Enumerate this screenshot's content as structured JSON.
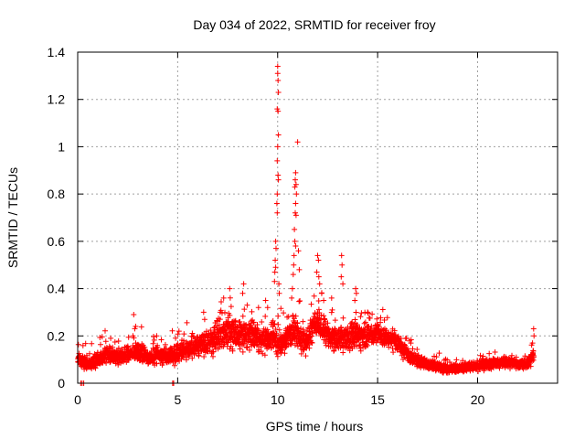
{
  "chart_data": {
    "type": "scatter",
    "title": "Day 034 of 2022, SRMTID for receiver froy",
    "xlabel": "GPS time / hours",
    "ylabel": "SRMTID / TECUs",
    "xlim": [
      0,
      24
    ],
    "ylim": [
      0,
      1.4
    ],
    "x_ticks": [
      0,
      5,
      10,
      15,
      20
    ],
    "x_tick_labels": [
      "0",
      "5",
      "10",
      "15",
      "20"
    ],
    "y_ticks": [
      0,
      0.2,
      0.4,
      0.6,
      0.8,
      1,
      1.2,
      1.4
    ],
    "y_tick_labels": [
      "0",
      "0.2",
      "0.4",
      "0.6",
      "0.8",
      "1",
      "1.2",
      "1.4"
    ],
    "grid": true,
    "marker": "+",
    "colors": {
      "series": "#ff0000",
      "grid": "#a0a0a0",
      "axes": "#000000"
    },
    "series": [
      {
        "name": "SRMTID",
        "envelope": {
          "x": [
            0,
            0.3,
            0.6,
            1,
            1.5,
            2,
            2.5,
            3,
            3.5,
            4,
            4.5,
            5,
            5.5,
            6,
            6.5,
            7,
            7.5,
            8,
            8.5,
            9,
            9.5,
            9.8,
            10,
            10.3,
            10.6,
            10.9,
            11.2,
            11.5,
            11.8,
            12,
            12.3,
            12.6,
            13,
            13.5,
            14,
            14.5,
            15,
            15.5,
            16,
            16.5,
            17,
            17.5,
            18,
            18.5,
            19,
            19.5,
            20,
            20.5,
            21,
            21.5,
            22,
            22.5,
            22.8
          ],
          "y": [
            0.11,
            0.09,
            0.08,
            0.1,
            0.12,
            0.11,
            0.12,
            0.13,
            0.11,
            0.12,
            0.11,
            0.13,
            0.14,
            0.16,
            0.17,
            0.2,
            0.22,
            0.2,
            0.21,
            0.19,
            0.18,
            0.2,
            0.16,
            0.18,
            0.2,
            0.22,
            0.19,
            0.18,
            0.25,
            0.27,
            0.22,
            0.2,
            0.18,
            0.19,
            0.21,
            0.2,
            0.21,
            0.19,
            0.17,
            0.12,
            0.09,
            0.08,
            0.07,
            0.06,
            0.065,
            0.07,
            0.07,
            0.08,
            0.085,
            0.09,
            0.08,
            0.08,
            0.12
          ],
          "spread": [
            0.035,
            0.035,
            0.03,
            0.035,
            0.04,
            0.04,
            0.04,
            0.045,
            0.04,
            0.04,
            0.04,
            0.05,
            0.05,
            0.05,
            0.055,
            0.07,
            0.08,
            0.07,
            0.07,
            0.065,
            0.06,
            0.06,
            0.06,
            0.065,
            0.07,
            0.08,
            0.065,
            0.06,
            0.07,
            0.07,
            0.065,
            0.06,
            0.055,
            0.06,
            0.07,
            0.055,
            0.05,
            0.045,
            0.04,
            0.035,
            0.03,
            0.025,
            0.025,
            0.022,
            0.022,
            0.022,
            0.022,
            0.022,
            0.024,
            0.024,
            0.022,
            0.022,
            0.04
          ]
        },
        "sample_interval_hours": 0.02,
        "spikes": [
          [
            10.0,
            1.34
          ],
          [
            10.0,
            1.31
          ],
          [
            10.02,
            1.28
          ],
          [
            10.04,
            1.23
          ],
          [
            9.98,
            1.16
          ],
          [
            10.02,
            1.15
          ],
          [
            10.04,
            1.05
          ],
          [
            10.0,
            1.0
          ],
          [
            9.98,
            0.94
          ],
          [
            10.02,
            0.88
          ],
          [
            10.04,
            0.86
          ],
          [
            9.98,
            0.8
          ],
          [
            9.96,
            0.76
          ],
          [
            9.98,
            0.72
          ],
          [
            9.9,
            0.6
          ],
          [
            9.92,
            0.57
          ],
          [
            9.88,
            0.52
          ],
          [
            9.86,
            0.47
          ],
          [
            9.84,
            0.43
          ],
          [
            9.9,
            0.49
          ],
          [
            10.06,
            0.42
          ],
          [
            10.08,
            0.38
          ],
          [
            10.9,
            0.89
          ],
          [
            10.88,
            0.86
          ],
          [
            10.92,
            0.84
          ],
          [
            10.86,
            0.83
          ],
          [
            10.94,
            0.8
          ],
          [
            10.9,
            0.76
          ],
          [
            10.88,
            0.72
          ],
          [
            10.92,
            0.71
          ],
          [
            10.84,
            0.65
          ],
          [
            10.86,
            0.6
          ],
          [
            10.9,
            0.58
          ],
          [
            10.82,
            0.54
          ],
          [
            10.8,
            0.5
          ],
          [
            10.78,
            0.46
          ],
          [
            10.74,
            0.4
          ],
          [
            10.7,
            0.36
          ],
          [
            11.0,
            1.02
          ],
          [
            11.04,
            0.56
          ],
          [
            11.08,
            0.48
          ],
          [
            12.0,
            0.54
          ],
          [
            12.04,
            0.52
          ],
          [
            11.96,
            0.47
          ],
          [
            12.06,
            0.45
          ],
          [
            12.1,
            0.42
          ],
          [
            12.2,
            0.38
          ],
          [
            12.3,
            0.35
          ],
          [
            13.2,
            0.54
          ],
          [
            13.22,
            0.5
          ],
          [
            13.18,
            0.45
          ],
          [
            13.26,
            0.42
          ],
          [
            13.9,
            0.4
          ],
          [
            13.94,
            0.38
          ],
          [
            13.86,
            0.35
          ],
          [
            8.3,
            0.42
          ],
          [
            8.25,
            0.38
          ],
          [
            7.3,
            0.36
          ],
          [
            7.6,
            0.4
          ],
          [
            6.3,
            0.3
          ],
          [
            6.35,
            0.27
          ],
          [
            2.8,
            0.29
          ],
          [
            2.9,
            0.24
          ],
          [
            22.8,
            0.23
          ],
          [
            22.82,
            0.2
          ],
          [
            9.4,
            0.35
          ],
          [
            9.5,
            0.32
          ],
          [
            12.7,
            0.36
          ],
          [
            14.5,
            0.3
          ],
          [
            0.15,
            0.0
          ],
          [
            0.22,
            0.0
          ],
          [
            0.3,
            0.0
          ],
          [
            4.75,
            0.0
          ],
          [
            4.8,
            0.0
          ]
        ]
      }
    ]
  }
}
